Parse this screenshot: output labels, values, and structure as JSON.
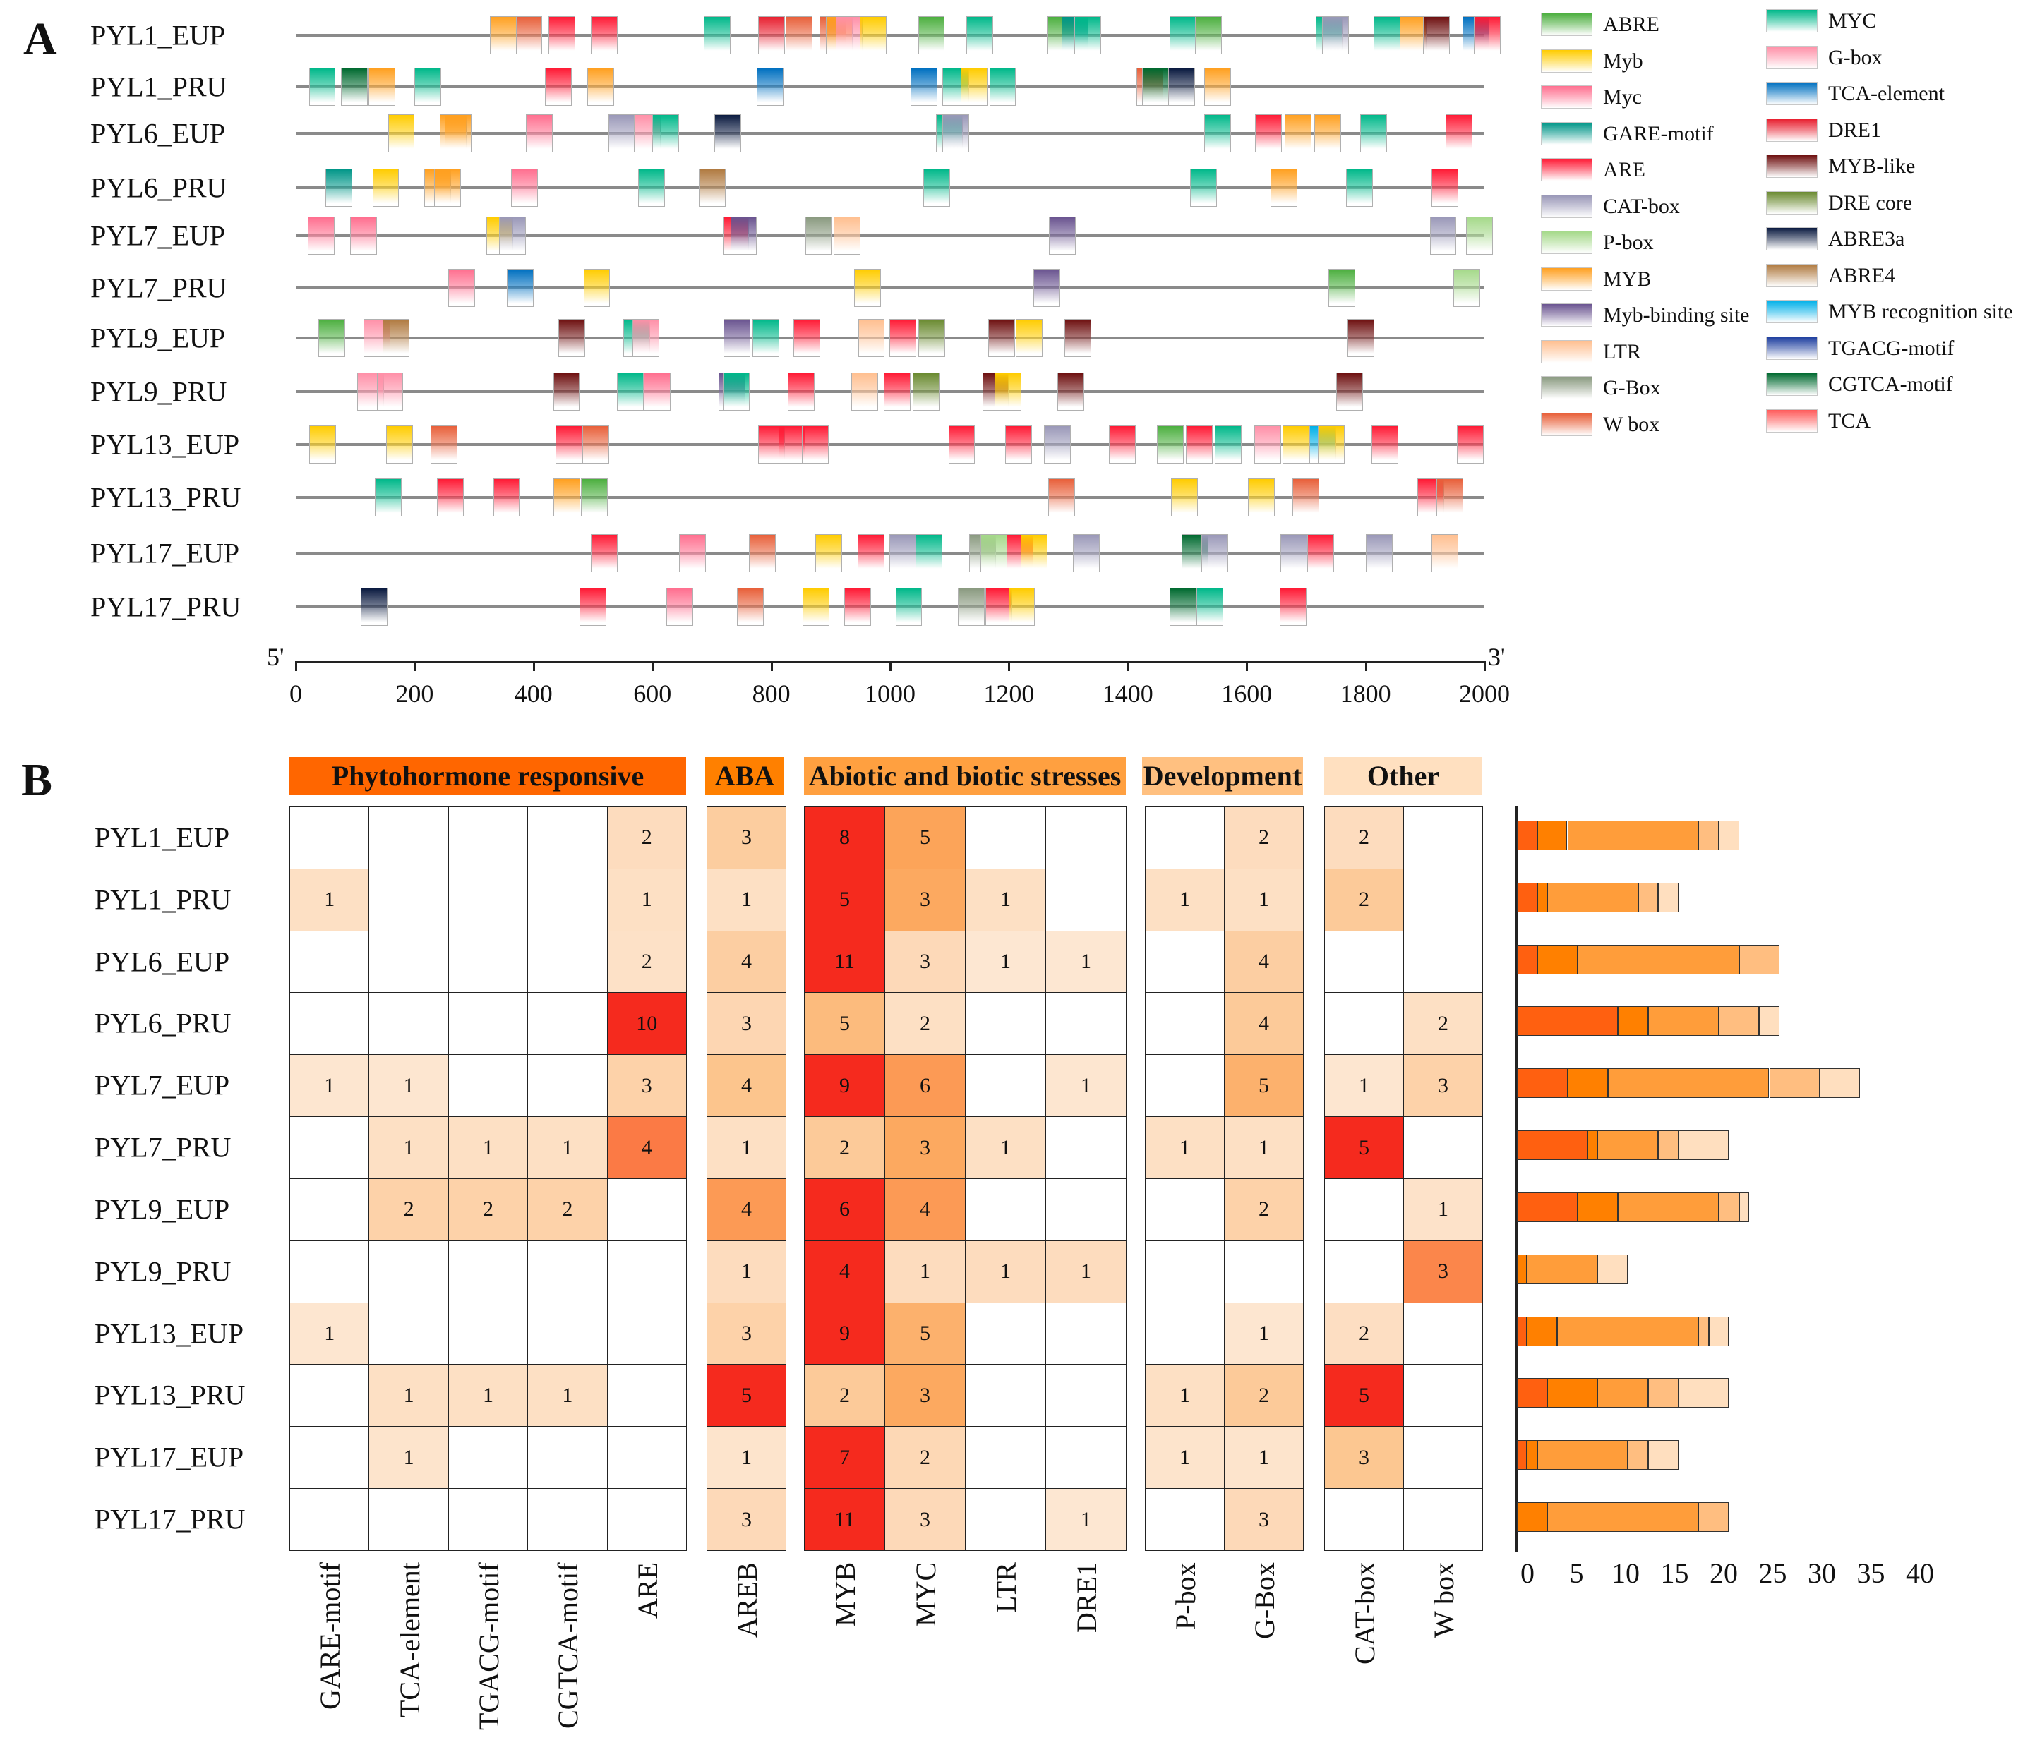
{
  "panel_a": {
    "letter": "A",
    "five_prime": "5'",
    "three_prime": "3'",
    "genes": [
      "PYL1_EUP",
      "PYL1_PRU",
      "PYL6_EUP",
      "PYL6_PRU",
      "PYL7_EUP",
      "PYL7_PRU",
      "PYL9_EUP",
      "PYL9_PRU",
      "PYL13_EUP",
      "PYL13_PRU",
      "PYL17_EUP",
      "PYL17_PRU"
    ],
    "axis": {
      "min": 0,
      "max": 2000,
      "ticks": [
        "0",
        "200",
        "400",
        "600",
        "800",
        "1000",
        "1200",
        "1400",
        "1600",
        "1800",
        "2000"
      ]
    },
    "motif_width_bp": 45,
    "legend": [
      {
        "label": "ABRE",
        "color": "#4caf3f"
      },
      {
        "label": "Myb",
        "color": "#ffcc00"
      },
      {
        "label": "Myc",
        "color": "#ff6f8f"
      },
      {
        "label": "GARE-motif",
        "color": "#009688"
      },
      {
        "label": "ARE",
        "color": "#ff1a35"
      },
      {
        "label": "CAT-box",
        "color": "#9a98b8"
      },
      {
        "label": "P-box",
        "color": "#a5d98a"
      },
      {
        "label": "MYB",
        "color": "#ffa020"
      },
      {
        "label": "Myb-binding site",
        "color": "#6a5490"
      },
      {
        "label": "LTR",
        "color": "#ffbf90"
      },
      {
        "label": "G-Box",
        "color": "#8a9a80"
      },
      {
        "label": "W box",
        "color": "#e8603a"
      },
      {
        "label": "MYC",
        "color": "#00b88a"
      },
      {
        "label": "G-box",
        "color": "#ff90a8"
      },
      {
        "label": "TCA-element",
        "color": "#0070c0"
      },
      {
        "label": "DRE1",
        "color": "#e82030"
      },
      {
        "label": "MYB-like",
        "color": "#6e1010"
      },
      {
        "label": "DRE core",
        "color": "#6a8a30"
      },
      {
        "label": "ABRE3a",
        "color": "#0a1a40"
      },
      {
        "label": "ABRE4",
        "color": "#b07a40"
      },
      {
        "label": "MYB recognition site",
        "color": "#00b0e8"
      },
      {
        "label": "TGACG-motif",
        "color": "#2040a0"
      },
      {
        "label": "CGTCA-motif",
        "color": "#006a30"
      },
      {
        "label": "TCA",
        "color": "#ff5a5a"
      }
    ],
    "motifs": [
      [
        [
          327,
          "MYB"
        ],
        [
          370,
          "W box"
        ],
        [
          425,
          "ARE"
        ],
        [
          497,
          "ARE"
        ],
        [
          687,
          "MYC"
        ],
        [
          778,
          "DRE1"
        ],
        [
          824,
          "W box"
        ],
        [
          881,
          "W box"
        ],
        [
          892,
          "MYB"
        ],
        [
          909,
          "G-box"
        ],
        [
          949,
          "Myb"
        ],
        [
          1047,
          "ABRE"
        ],
        [
          1128,
          "MYC"
        ],
        [
          1265,
          "ABRE"
        ],
        [
          1289,
          "GARE-motif"
        ],
        [
          1310,
          "MYC"
        ],
        [
          1470,
          "MYC"
        ],
        [
          1513,
          "ABRE"
        ],
        [
          1716,
          "MYC"
        ],
        [
          1727,
          "CAT-box"
        ],
        [
          1814,
          "MYC"
        ],
        [
          1858,
          "MYB"
        ],
        [
          1897,
          "MYB-like"
        ],
        [
          1963,
          "TCA-element"
        ],
        [
          1982,
          "ARE"
        ]
      ],
      [
        [
          22,
          "MYC"
        ],
        [
          76,
          "CGTCA-motif"
        ],
        [
          122,
          "MYB"
        ],
        [
          200,
          "MYC"
        ],
        [
          419,
          "ARE"
        ],
        [
          491,
          "MYB"
        ],
        [
          776,
          "TCA-element"
        ],
        [
          1034,
          "TCA-element"
        ],
        [
          1088,
          "MYC"
        ],
        [
          1119,
          "Myb"
        ],
        [
          1167,
          "MYC"
        ],
        [
          1415,
          "W box"
        ],
        [
          1424,
          "CGTCA-motif"
        ],
        [
          1468,
          "ABRE3a"
        ],
        [
          1529,
          "MYB"
        ]
      ],
      [
        [
          155,
          "Myb"
        ],
        [
          242,
          "MYB"
        ],
        [
          251,
          "MYB"
        ],
        [
          387,
          "Myc"
        ],
        [
          526,
          "CAT-box"
        ],
        [
          569,
          "G-box"
        ],
        [
          600,
          "MYC"
        ],
        [
          704,
          "ABRE3a"
        ],
        [
          1077,
          "MYC"
        ],
        [
          1088,
          "CAT-box"
        ],
        [
          1529,
          "MYC"
        ],
        [
          1614,
          "ARE"
        ],
        [
          1664,
          "MYB"
        ],
        [
          1714,
          "MYB"
        ],
        [
          1791,
          "MYC"
        ],
        [
          1935,
          "ARE"
        ]
      ],
      [
        [
          50,
          "GARE-motif"
        ],
        [
          129,
          "Myb"
        ],
        [
          216,
          "MYB"
        ],
        [
          233,
          "MYB"
        ],
        [
          362,
          "Myc"
        ],
        [
          576,
          "MYC"
        ],
        [
          678,
          "ABRE4"
        ],
        [
          1056,
          "MYC"
        ],
        [
          1505,
          "MYC"
        ],
        [
          1640,
          "MYB"
        ],
        [
          1767,
          "MYC"
        ],
        [
          1911,
          "ARE"
        ]
      ],
      [
        [
          20,
          "Myc"
        ],
        [
          92,
          "Myc"
        ],
        [
          321,
          "Myb"
        ],
        [
          342,
          "CAT-box"
        ],
        [
          718,
          "ARE"
        ],
        [
          731,
          "Myb-binding site"
        ],
        [
          857,
          "G-Box"
        ],
        [
          905,
          "LTR"
        ],
        [
          1267,
          "Myb-binding site"
        ],
        [
          1908,
          "CAT-box"
        ],
        [
          1969,
          "P-box"
        ]
      ],
      [
        [
          257,
          "Myc"
        ],
        [
          355,
          "TCA-element"
        ],
        [
          484,
          "Myb"
        ],
        [
          940,
          "Myb"
        ],
        [
          1241,
          "Myb-binding site"
        ],
        [
          1738,
          "ABRE"
        ],
        [
          1948,
          "P-box"
        ]
      ],
      [
        [
          38,
          "ABRE"
        ],
        [
          114,
          "G-box"
        ],
        [
          146,
          "ABRE4"
        ],
        [
          442,
          "MYB-like"
        ],
        [
          551,
          "MYC"
        ],
        [
          567,
          "G-box"
        ],
        [
          720,
          "Myb-binding site"
        ],
        [
          768,
          "MYC"
        ],
        [
          837,
          "ARE"
        ],
        [
          946,
          "LTR"
        ],
        [
          999,
          "ARE"
        ],
        [
          1048,
          "DRE core"
        ],
        [
          1165,
          "MYB-like"
        ],
        [
          1211,
          "Myb"
        ],
        [
          1293,
          "MYB-like"
        ],
        [
          1770,
          "MYB-like"
        ]
      ],
      [
        [
          103,
          "G-box"
        ],
        [
          136,
          "G-box"
        ],
        [
          433,
          "MYB-like"
        ],
        [
          540,
          "MYC"
        ],
        [
          586,
          "Myc"
        ],
        [
          711,
          "Myb-binding site"
        ],
        [
          719,
          "MYC"
        ],
        [
          828,
          "ARE"
        ],
        [
          935,
          "LTR"
        ],
        [
          989,
          "ARE"
        ],
        [
          1038,
          "DRE core"
        ],
        [
          1155,
          "MYB-like"
        ],
        [
          1176,
          "Myb"
        ],
        [
          1282,
          "MYB-like"
        ],
        [
          1751,
          "MYB-like"
        ]
      ],
      [
        [
          23,
          "Myb"
        ],
        [
          152,
          "Myb"
        ],
        [
          227,
          "W box"
        ],
        [
          437,
          "ARE"
        ],
        [
          482,
          "W box"
        ],
        [
          778,
          "ARE"
        ],
        [
          812,
          "ARE"
        ],
        [
          852,
          "ARE"
        ],
        [
          1098,
          "ARE"
        ],
        [
          1194,
          "ARE"
        ],
        [
          1259,
          "CAT-box"
        ],
        [
          1368,
          "ARE"
        ],
        [
          1449,
          "ABRE"
        ],
        [
          1498,
          "ARE"
        ],
        [
          1546,
          "MYC"
        ],
        [
          1613,
          "G-box"
        ],
        [
          1660,
          "Myb"
        ],
        [
          1706,
          "MYB recognition site"
        ],
        [
          1720,
          "Myb"
        ],
        [
          1810,
          "ARE"
        ],
        [
          1954,
          "ARE"
        ]
      ],
      [
        [
          133,
          "MYC"
        ],
        [
          238,
          "ARE"
        ],
        [
          332,
          "ARE"
        ],
        [
          434,
          "MYB"
        ],
        [
          480,
          "ABRE"
        ],
        [
          1266,
          "W box"
        ],
        [
          1473,
          "Myb"
        ],
        [
          1602,
          "Myb"
        ],
        [
          1677,
          "W box"
        ],
        [
          1887,
          "ARE"
        ],
        [
          1919,
          "W box"
        ]
      ],
      [
        [
          497,
          "ARE"
        ],
        [
          645,
          "Myc"
        ],
        [
          763,
          "W box"
        ],
        [
          874,
          "Myb"
        ],
        [
          945,
          "ARE"
        ],
        [
          999,
          "CAT-box"
        ],
        [
          1043,
          "MYC"
        ],
        [
          1133,
          "G-Box"
        ],
        [
          1152,
          "P-box"
        ],
        [
          1196,
          "ARE"
        ],
        [
          1220,
          "Myb"
        ],
        [
          1308,
          "CAT-box"
        ],
        [
          1491,
          "CGTCA-motif"
        ],
        [
          1524,
          "CAT-box"
        ],
        [
          1657,
          "CAT-box"
        ],
        [
          1702,
          "ARE"
        ],
        [
          1801,
          "CAT-box"
        ],
        [
          1911,
          "LTR"
        ]
      ],
      [
        [
          109,
          "ABRE3a"
        ],
        [
          477,
          "ARE"
        ],
        [
          624,
          "Myc"
        ],
        [
          742,
          "W box"
        ],
        [
          853,
          "Myb"
        ],
        [
          923,
          "ARE"
        ],
        [
          1009,
          "MYC"
        ],
        [
          1114,
          "G-Box"
        ],
        [
          1160,
          "ARE"
        ],
        [
          1199,
          "Myb"
        ],
        [
          1470,
          "CGTCA-motif"
        ],
        [
          1515,
          "MYC"
        ],
        [
          1656,
          "ARE"
        ]
      ]
    ]
  },
  "panel_b": {
    "letter": "B",
    "groups": [
      {
        "label": "Phytohormone responsive",
        "color": "#ff6600",
        "columns": [
          "GARE-motif",
          "TCA-element",
          "TGACG-motif",
          "CGTCA-motif",
          "ARE"
        ]
      },
      {
        "label": "ABA",
        "color": "#ff8000",
        "columns": [
          "AREB"
        ]
      },
      {
        "label": "Abiotic and biotic stresses",
        "color": "#ffa040",
        "columns": [
          "MYB",
          "MYC",
          "LTR",
          "DRE1"
        ]
      },
      {
        "label": "Development",
        "color": "#ffc080",
        "columns": [
          "P-box",
          "G-Box"
        ]
      },
      {
        "label": "Other",
        "color": "#ffe0c0",
        "columns": [
          "CAT-box",
          "W box"
        ]
      }
    ],
    "rows": [
      {
        "gene": "PYL1_EUP",
        "values": [
          0,
          0,
          0,
          0,
          2,
          3,
          8,
          5,
          0,
          0,
          0,
          2,
          2,
          0
        ]
      },
      {
        "gene": "PYL1_PRU",
        "values": [
          1,
          0,
          0,
          0,
          1,
          1,
          5,
          3,
          1,
          0,
          1,
          1,
          2,
          0
        ]
      },
      {
        "gene": "PYL6_EUP",
        "values": [
          0,
          0,
          0,
          0,
          2,
          4,
          11,
          3,
          1,
          1,
          0,
          4,
          0,
          0
        ]
      },
      {
        "gene": "PYL6_PRU",
        "values": [
          0,
          0,
          0,
          0,
          10,
          3,
          5,
          2,
          0,
          0,
          0,
          4,
          0,
          2
        ]
      },
      {
        "gene": "PYL7_EUP",
        "values": [
          1,
          1,
          0,
          0,
          3,
          4,
          9,
          6,
          0,
          1,
          0,
          5,
          1,
          3
        ]
      },
      {
        "gene": "PYL7_PRU",
        "values": [
          0,
          1,
          1,
          1,
          4,
          1,
          2,
          3,
          1,
          0,
          1,
          1,
          5,
          0
        ]
      },
      {
        "gene": "PYL9_EUP",
        "values": [
          0,
          2,
          2,
          2,
          0,
          4,
          6,
          4,
          0,
          0,
          0,
          2,
          0,
          1
        ]
      },
      {
        "gene": "PYL9_PRU",
        "values": [
          0,
          0,
          0,
          0,
          0,
          1,
          4,
          1,
          1,
          1,
          0,
          0,
          0,
          3
        ]
      },
      {
        "gene": "PYL13_EUP",
        "values": [
          1,
          0,
          0,
          0,
          0,
          3,
          9,
          5,
          0,
          0,
          0,
          1,
          2,
          0
        ]
      },
      {
        "gene": "PYL13_PRU",
        "values": [
          0,
          1,
          1,
          1,
          0,
          5,
          2,
          3,
          0,
          0,
          1,
          2,
          5,
          0
        ]
      },
      {
        "gene": "PYL17_EUP",
        "values": [
          0,
          1,
          0,
          0,
          0,
          1,
          7,
          2,
          0,
          0,
          1,
          1,
          3,
          0
        ]
      },
      {
        "gene": "PYL17_PRU",
        "values": [
          0,
          0,
          0,
          0,
          0,
          3,
          11,
          3,
          0,
          1,
          0,
          3,
          0,
          0
        ]
      }
    ]
  },
  "chart_data": {
    "type": "bar",
    "orientation": "horizontal",
    "stacked": true,
    "categories": [
      "PYL1_EUP",
      "PYL1_PRU",
      "PYL6_EUP",
      "PYL6_PRU",
      "PYL7_EUP",
      "PYL7_PRU",
      "PYL9_EUP",
      "PYL9_PRU",
      "PYL13_EUP",
      "PYL13_PRU",
      "PYL17_EUP",
      "PYL17_PRU"
    ],
    "series": [
      {
        "name": "Phytohormone responsive",
        "color": "#ff6010",
        "values": [
          2,
          2,
          2,
          10,
          5,
          7,
          6,
          0,
          1,
          3,
          1,
          0
        ]
      },
      {
        "name": "ABA",
        "color": "#ff8000",
        "values": [
          3,
          1,
          4,
          3,
          4,
          1,
          4,
          1,
          3,
          5,
          1,
          3
        ]
      },
      {
        "name": "Abiotic and biotic stresses",
        "color": "#ff9d3a",
        "values": [
          13,
          9,
          16,
          7,
          16,
          6,
          10,
          7,
          14,
          5,
          9,
          15
        ]
      },
      {
        "name": "Development",
        "color": "#ffbe80",
        "values": [
          2,
          2,
          4,
          4,
          5,
          2,
          2,
          0,
          1,
          3,
          2,
          3
        ]
      },
      {
        "name": "Other",
        "color": "#ffdfbf",
        "values": [
          2,
          2,
          0,
          2,
          4,
          5,
          1,
          3,
          2,
          5,
          3,
          0
        ]
      }
    ],
    "xlim": [
      0,
      40
    ],
    "xticks": [
      "0",
      "5",
      "10",
      "15",
      "20",
      "25",
      "30",
      "35",
      "40"
    ],
    "title": "",
    "xlabel": "",
    "ylabel": ""
  }
}
